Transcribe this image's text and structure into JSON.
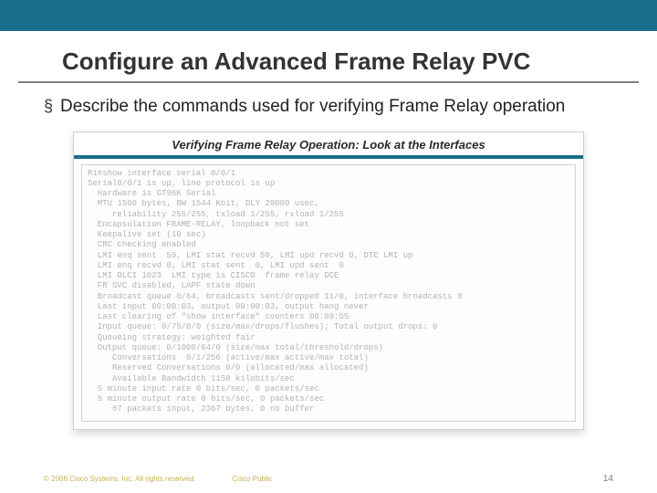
{
  "top_bar_color": "#1a6e8e",
  "title": "Configure an Advanced Frame Relay PVC",
  "bullet": {
    "glyph": "§",
    "text": "Describe the commands used for verifying Frame Relay operation"
  },
  "figure": {
    "caption": "Verifying Frame Relay Operation: Look at the Interfaces",
    "divider_color": "#1a6e8e",
    "terminal_lines": [
      "R1#show interface serial 0/0/1",
      "Serial0/0/1 is up, line protocol is up",
      "  Hardware is GT96K Serial",
      "  MTU 1500 bytes, BW 1544 Kbit, DLY 20000 usec,",
      "     reliability 255/255, txload 1/255, rxload 1/255",
      "  Encapsulation FRAME-RELAY, loopback not set",
      "  Keepalive set (10 sec)",
      "  CRC checking enabled",
      "  LMI enq sent  59, LMI stat recvd 59, LMI upd recvd 0, DTE LMI up",
      "  LMI enq recvd 0, LMI stat sent  0, LMI upd sent  0",
      "  LMI DLCI 1023  LMI type is CISCO  frame relay DCE",
      "  FR SVC disabled, LAPF state down",
      "  Broadcast queue 0/64, broadcasts sent/dropped 11/0, interface broadcasts 0",
      "  Last input 00:00:03, output 00:00:03, output hang never",
      "  Last clearing of \"show interface\" counters 00:09:55",
      "  Input queue: 0/75/0/0 (size/max/drops/flushes); Total output drops: 0",
      "  Queueing strategy: weighted fair",
      "  Output queue: 0/1000/64/0 (size/max total/threshold/drops)",
      "     Conversations  0/1/256 (active/max active/max total)",
      "     Reserved Conversations 0/0 (allocated/max allocated)",
      "     Available Bandwidth 1158 kilobits/sec",
      "  5 minute input rate 0 bits/sec, 0 packets/sec",
      "  5 minute output rate 0 bits/sec, 0 packets/sec",
      "     67 packets input, 2367 bytes, 0 no buffer"
    ]
  },
  "footer": {
    "copyright": "© 2006 Cisco Systems, Inc. All rights reserved.",
    "label": "Cisco Public",
    "page": "14"
  }
}
